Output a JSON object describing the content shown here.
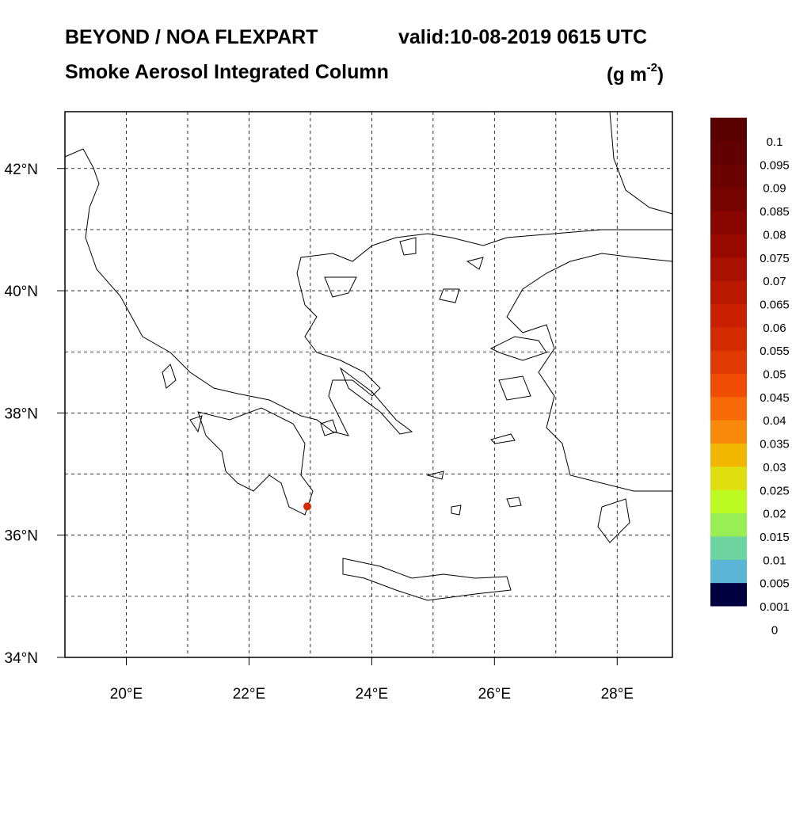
{
  "header": {
    "title": "BEYOND / NOA FLEXPART",
    "valid": "valid:10-08-2019 0615 UTC",
    "subtitle": "Smoke Aerosol Integrated Column",
    "units": {
      "open": "(g m",
      "exponent": "-2",
      "close": ")"
    }
  },
  "map": {
    "lon_range": [
      19,
      28.9
    ],
    "lat_range": [
      34,
      42.93
    ],
    "lon_ticks": [
      {
        "value": 20,
        "label": "20°E"
      },
      {
        "value": 22,
        "label": "22°E"
      },
      {
        "value": 24,
        "label": "24°E"
      },
      {
        "value": 26,
        "label": "26°E"
      },
      {
        "value": 28,
        "label": "28°E"
      }
    ],
    "lat_ticks": [
      {
        "value": 34,
        "label": "34°N"
      },
      {
        "value": 36,
        "label": "36°N"
      },
      {
        "value": 38,
        "label": "38°N"
      },
      {
        "value": 40,
        "label": "40°N"
      },
      {
        "value": 42,
        "label": "42°N"
      }
    ],
    "grid_lons": [
      20,
      21,
      22,
      23,
      24,
      25,
      26,
      27,
      28
    ],
    "grid_lats": [
      35,
      36,
      37,
      38,
      39,
      40,
      41,
      42
    ],
    "plume": {
      "lon": 22.95,
      "lat": 36.47,
      "color": "#d42a00"
    }
  },
  "colorbar": {
    "levels": [
      0,
      0.001,
      0.005,
      0.01,
      0.015,
      0.02,
      0.025,
      0.03,
      0.035,
      0.04,
      0.045,
      0.05,
      0.055,
      0.06,
      0.065,
      0.07,
      0.075,
      0.08,
      0.085,
      0.09,
      0.095,
      0.1
    ],
    "colors": [
      "#000040",
      "#5ab6d4",
      "#6dd3a0",
      "#99ee55",
      "#bbfa22",
      "#dede10",
      "#f0b600",
      "#f88a0c",
      "#f86a08",
      "#f04c04",
      "#e03a02",
      "#d42a00",
      "#c82000",
      "#b81800",
      "#a81000",
      "#980a00",
      "#880600",
      "#780400",
      "#6c0200",
      "#600000",
      "#580000"
    ]
  }
}
